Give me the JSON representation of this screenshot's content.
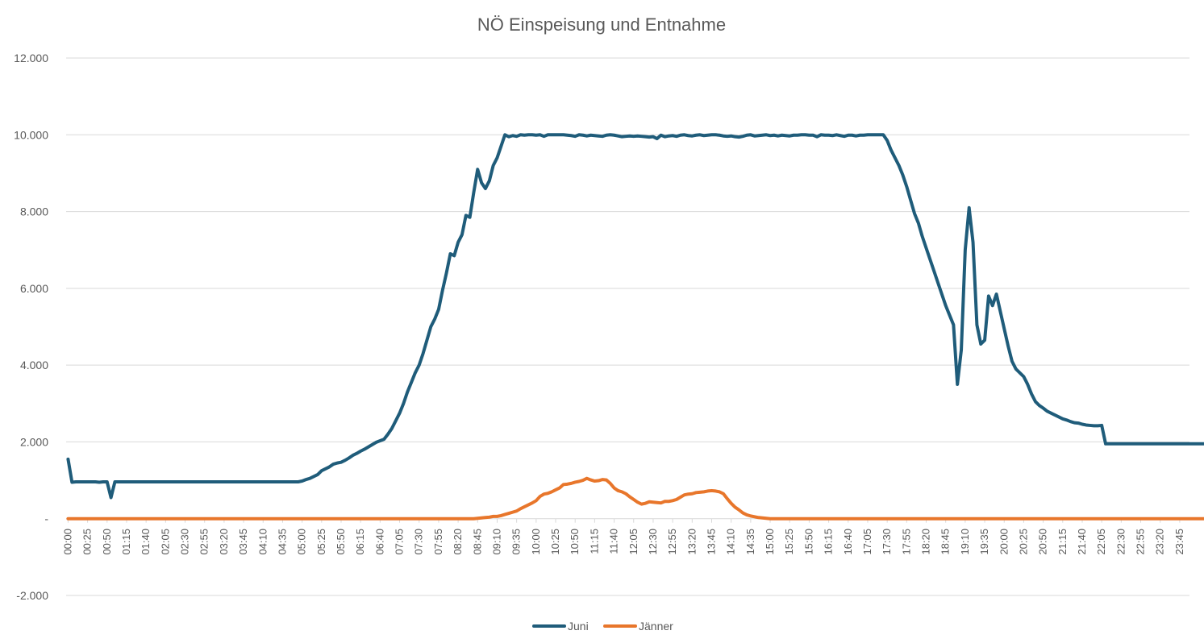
{
  "chart_data": {
    "type": "line",
    "title": "NÖ Einspeisung und Entnahme",
    "xlabel": "",
    "ylabel": "",
    "ylim": [
      -2000,
      12000
    ],
    "yticks": [
      -2000,
      0,
      2000,
      4000,
      6000,
      8000,
      10000,
      12000
    ],
    "ytick_labels": [
      "-2.000",
      "-",
      "2.000",
      "4.000",
      "6.000",
      "8.000",
      "10.000",
      "12.000"
    ],
    "x_interval_minutes": 5,
    "x_points": 288,
    "xtick_labels": [
      "00:00",
      "00:25",
      "00:50",
      "01:15",
      "01:40",
      "02:05",
      "02:30",
      "02:55",
      "03:20",
      "03:45",
      "04:10",
      "04:35",
      "05:00",
      "05:25",
      "05:50",
      "06:15",
      "06:40",
      "07:05",
      "07:30",
      "07:55",
      "08:20",
      "08:45",
      "09:10",
      "09:35",
      "10:00",
      "10:25",
      "10:50",
      "11:15",
      "11:40",
      "12:05",
      "12:30",
      "12:55",
      "13:20",
      "13:45",
      "14:10",
      "14:35",
      "15:00",
      "15:25",
      "15:50",
      "16:15",
      "16:40",
      "17:05",
      "17:30",
      "17:55",
      "18:20",
      "18:45",
      "19:10",
      "19:35",
      "20:00",
      "20:25",
      "20:50",
      "21:15",
      "21:40",
      "22:05",
      "22:30",
      "22:55",
      "23:20",
      "23:45"
    ],
    "grid": true,
    "legend": "bottom",
    "series": [
      {
        "name": "Juni",
        "color": "#1f5c7a",
        "values": [
          1550,
          950,
          960,
          960,
          960,
          960,
          960,
          960,
          950,
          960,
          960,
          550,
          960,
          960,
          960,
          960,
          960,
          960,
          960,
          960,
          960,
          960,
          960,
          960,
          960,
          960,
          960,
          960,
          960,
          960,
          960,
          960,
          960,
          960,
          960,
          960,
          960,
          960,
          960,
          960,
          960,
          960,
          960,
          960,
          960,
          960,
          960,
          960,
          960,
          960,
          960,
          960,
          960,
          960,
          960,
          960,
          960,
          960,
          960,
          960,
          980,
          1020,
          1050,
          1100,
          1150,
          1250,
          1300,
          1350,
          1420,
          1450,
          1470,
          1520,
          1580,
          1650,
          1700,
          1760,
          1810,
          1870,
          1930,
          1990,
          2030,
          2070,
          2200,
          2350,
          2550,
          2750,
          3000,
          3300,
          3550,
          3800,
          4000,
          4300,
          4650,
          5000,
          5200,
          5450,
          5950,
          6400,
          6900,
          6850,
          7200,
          7400,
          7900,
          7850,
          8500,
          9100,
          8750,
          8600,
          8800,
          9200,
          9400,
          9700,
          10000,
          9950,
          9980,
          9960,
          10000,
          9990,
          10000,
          10000,
          9990,
          10000,
          9960,
          10000,
          10000,
          10000,
          10000,
          10000,
          9990,
          9980,
          9960,
          10000,
          9990,
          9970,
          9990,
          9980,
          9970,
          9960,
          9990,
          10000,
          9990,
          9970,
          9950,
          9960,
          9970,
          9960,
          9970,
          9960,
          9950,
          9940,
          9950,
          9900,
          9990,
          9950,
          9970,
          9980,
          9960,
          9990,
          10000,
          9980,
          9970,
          9990,
          10000,
          9980,
          9990,
          10000,
          10000,
          9990,
          9970,
          9960,
          9970,
          9950,
          9940,
          9960,
          9990,
          10000,
          9970,
          9980,
          9990,
          10000,
          9980,
          9990,
          9970,
          9990,
          9980,
          9970,
          9990,
          9990,
          10000,
          10000,
          9990,
          9990,
          9950,
          10000,
          9990,
          9990,
          9980,
          10000,
          9980,
          9960,
          9990,
          9990,
          9970,
          9990,
          9990,
          10000,
          10000,
          10000,
          10000,
          10000,
          9850,
          9600,
          9400,
          9200,
          8950,
          8650,
          8300,
          7950,
          7700,
          7350,
          7050,
          6750,
          6450,
          6150,
          5850,
          5550,
          5300,
          5050,
          3500,
          4400,
          7000,
          8100,
          7200,
          5050,
          4550,
          4650,
          5800,
          5550,
          5850,
          5400,
          4950,
          4500,
          4100,
          3900,
          3800,
          3700,
          3500,
          3250,
          3050,
          2950,
          2880,
          2800,
          2750,
          2700,
          2650,
          2600,
          2570,
          2530,
          2500,
          2490,
          2460,
          2440,
          2430,
          2420,
          2420,
          2430,
          1950,
          1950,
          1950,
          1950,
          1950,
          1950,
          1950,
          1950,
          1950,
          1950,
          1950,
          1950,
          1950,
          1950,
          1950,
          1950,
          1950,
          1950,
          1950,
          1950,
          1950,
          1950,
          1950,
          1950,
          1950,
          1950,
          1950,
          1950,
          1950,
          1950,
          1950
        ]
      },
      {
        "name": "Jänner",
        "color": "#e8762b",
        "values": [
          0,
          0,
          0,
          0,
          0,
          0,
          0,
          0,
          0,
          0,
          0,
          0,
          0,
          0,
          0,
          0,
          0,
          0,
          0,
          0,
          0,
          0,
          0,
          0,
          0,
          0,
          0,
          0,
          0,
          0,
          0,
          0,
          0,
          0,
          0,
          0,
          0,
          0,
          0,
          0,
          0,
          0,
          0,
          0,
          0,
          0,
          0,
          0,
          0,
          0,
          0,
          0,
          0,
          0,
          0,
          0,
          0,
          0,
          0,
          0,
          0,
          0,
          0,
          0,
          0,
          0,
          0,
          0,
          0,
          0,
          0,
          0,
          0,
          0,
          0,
          0,
          0,
          0,
          0,
          0,
          0,
          0,
          0,
          0,
          0,
          0,
          0,
          0,
          0,
          0,
          0,
          0,
          0,
          0,
          0,
          0,
          0,
          0,
          0,
          0,
          0,
          0,
          0,
          0,
          0,
          10,
          20,
          30,
          40,
          60,
          60,
          80,
          110,
          140,
          170,
          200,
          260,
          310,
          360,
          410,
          470,
          580,
          640,
          660,
          700,
          750,
          800,
          890,
          900,
          920,
          950,
          970,
          1000,
          1050,
          1010,
          980,
          990,
          1020,
          1010,
          920,
          800,
          730,
          700,
          650,
          570,
          500,
          430,
          380,
          400,
          440,
          430,
          420,
          410,
          450,
          450,
          470,
          500,
          560,
          620,
          640,
          650,
          680,
          690,
          700,
          720,
          730,
          720,
          700,
          650,
          520,
          400,
          300,
          230,
          150,
          100,
          70,
          50,
          30,
          20,
          10,
          0,
          0,
          0,
          0,
          0,
          0,
          0,
          0,
          0,
          0,
          0,
          0,
          0,
          0,
          0,
          0,
          0,
          0,
          0,
          0,
          0,
          0,
          0,
          0,
          0,
          0,
          0,
          0,
          0,
          0,
          0,
          0,
          0,
          0,
          0,
          0,
          0,
          0,
          0,
          0,
          0,
          0,
          0,
          0,
          0,
          0,
          0,
          0,
          0,
          0,
          0,
          0,
          0,
          0,
          0,
          0,
          0,
          0,
          0,
          0,
          0,
          0,
          0,
          0,
          0,
          0,
          0,
          0,
          0,
          0,
          0,
          0,
          0,
          0,
          0,
          0,
          0,
          0,
          0,
          0,
          0,
          0,
          0,
          0,
          0,
          0,
          0,
          0,
          0,
          0,
          0,
          0,
          0,
          0,
          0,
          0,
          0,
          0,
          0,
          0,
          0,
          0,
          0,
          0,
          0,
          0,
          0,
          0,
          0,
          0,
          0,
          0,
          0,
          0,
          0,
          0,
          0,
          0,
          0,
          0,
          0
        ]
      }
    ]
  }
}
